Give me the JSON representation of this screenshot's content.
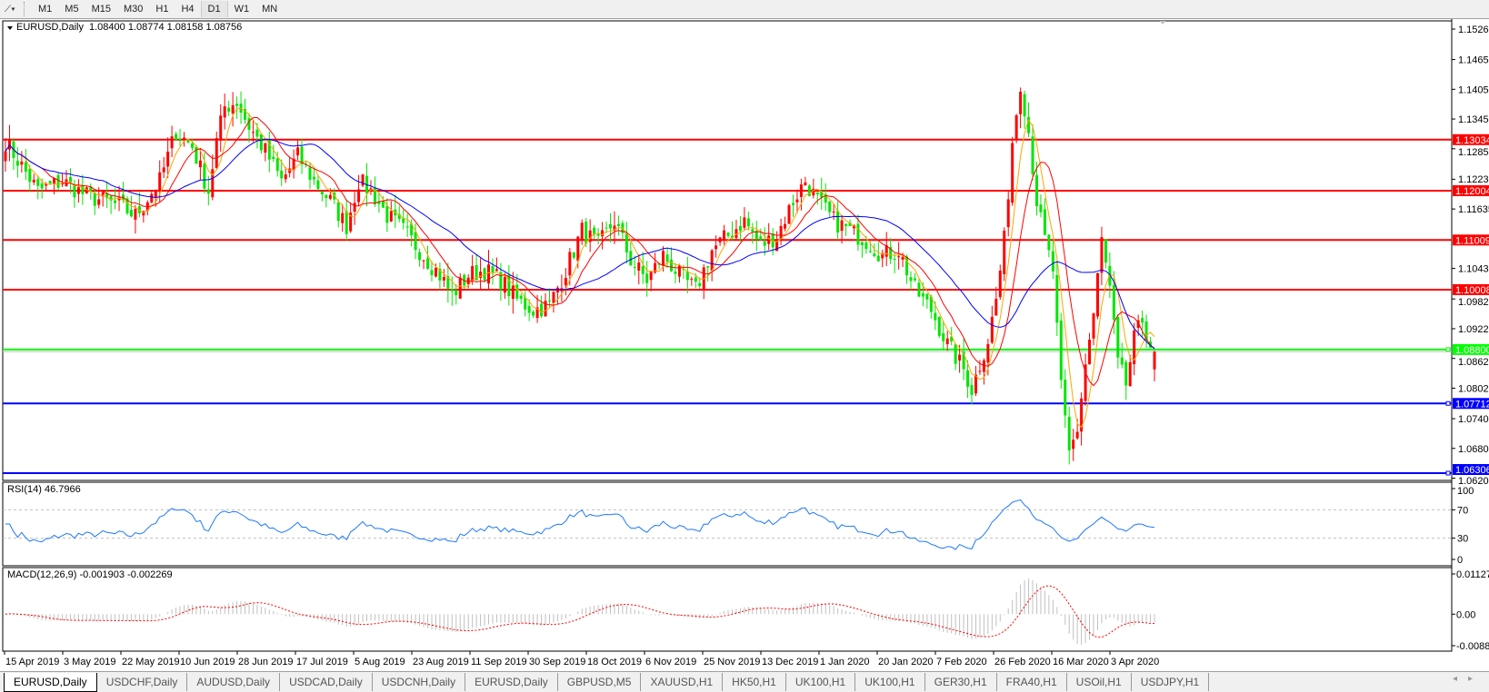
{
  "toolbar": {
    "tool_icon": "line-tools-icon",
    "timeframes": [
      "M1",
      "M5",
      "M15",
      "M30",
      "H1",
      "H4",
      "D1",
      "W1",
      "MN"
    ],
    "active_timeframe": "D1"
  },
  "main": {
    "header": "EURUSD,Daily",
    "ohlc": "1.08400 1.08774 1.08158 1.08756",
    "price_ticks": [
      "1.15265",
      "1.14650",
      "1.14050",
      "1.13450",
      "1.12850",
      "1.12235",
      "1.11635",
      "1.10435",
      "1.09820",
      "1.09220",
      "1.08620",
      "1.08020",
      "1.07405",
      "1.06805",
      "1.06205"
    ],
    "levels": [
      {
        "price": "1.13034",
        "color": "#ff0000"
      },
      {
        "price": "1.12004",
        "color": "#ff0000"
      },
      {
        "price": "1.11009",
        "color": "#ff0000"
      },
      {
        "price": "1.10008",
        "color": "#ff0000"
      },
      {
        "price": "1.08800",
        "color": "#00ff00"
      },
      {
        "price": "1.07712",
        "color": "#0000ff"
      },
      {
        "price": "1.06306",
        "color": "#0000ff"
      }
    ],
    "up_color": "#ff0000",
    "down_color": "#00e600",
    "ma_colors": [
      "#ffa500",
      "#ff0000",
      "#0000ff"
    ]
  },
  "rsi": {
    "label": "RSI(14) 46.7966",
    "ticks": [
      "100",
      "70",
      "30",
      "0"
    ],
    "color": "#1e78ff"
  },
  "macd": {
    "label": "MACD(12,26,9) -0.001903 -0.002269",
    "ticks": [
      "0.011277",
      "0.00",
      "-0.008845"
    ],
    "signal_color": "#ff0000",
    "hist_color": "#c0c0c0"
  },
  "time_axis": [
    "15 Apr 2019",
    "3 May 2019",
    "22 May 2019",
    "10 Jun 2019",
    "28 Jun 2019",
    "17 Jul 2019",
    "5 Aug 2019",
    "23 Aug 2019",
    "11 Sep 2019",
    "30 Sep 2019",
    "18 Oct 2019",
    "6 Nov 2019",
    "25 Nov 2019",
    "13 Dec 2019",
    "1 Jan 2020",
    "20 Jan 2020",
    "7 Feb 2020",
    "26 Feb 2020",
    "16 Mar 2020",
    "3 Apr 2020"
  ],
  "chart_data": {
    "type": "candlestick",
    "symbol": "EURUSD",
    "timeframe": "Daily",
    "ylim": [
      1.06205,
      1.15265
    ],
    "last_bar": {
      "open": 1.084,
      "high": 1.08774,
      "low": 1.08158,
      "close": 1.08756
    },
    "close_keypoints": [
      [
        0,
        1.13
      ],
      [
        8,
        1.12
      ],
      [
        14,
        1.122
      ],
      [
        20,
        1.119
      ],
      [
        28,
        1.117
      ],
      [
        32,
        1.115
      ],
      [
        38,
        1.122
      ],
      [
        42,
        1.132
      ],
      [
        46,
        1.129
      ],
      [
        50,
        1.12
      ],
      [
        52,
        1.13
      ],
      [
        54,
        1.137
      ],
      [
        57,
        1.138
      ],
      [
        60,
        1.133
      ],
      [
        64,
        1.128
      ],
      [
        68,
        1.122
      ],
      [
        72,
        1.127
      ],
      [
        76,
        1.122
      ],
      [
        80,
        1.118
      ],
      [
        84,
        1.113
      ],
      [
        87,
        1.122
      ],
      [
        90,
        1.12
      ],
      [
        94,
        1.115
      ],
      [
        98,
        1.112
      ],
      [
        104,
        1.106
      ],
      [
        107,
        1.103
      ],
      [
        110,
        1.099
      ],
      [
        114,
        1.103
      ],
      [
        118,
        1.104
      ],
      [
        122,
        1.102
      ],
      [
        126,
        1.098
      ],
      [
        130,
        1.096
      ],
      [
        134,
        1.097
      ],
      [
        138,
        1.104
      ],
      [
        142,
        1.112
      ],
      [
        146,
        1.109
      ],
      [
        150,
        1.114
      ],
      [
        154,
        1.106
      ],
      [
        158,
        1.102
      ],
      [
        162,
        1.107
      ],
      [
        166,
        1.103
      ],
      [
        170,
        1.1
      ],
      [
        174,
        1.108
      ],
      [
        178,
        1.111
      ],
      [
        182,
        1.114
      ],
      [
        186,
        1.109
      ],
      [
        190,
        1.111
      ],
      [
        194,
        1.118
      ],
      [
        197,
        1.122
      ],
      [
        200,
        1.118
      ],
      [
        204,
        1.114
      ],
      [
        208,
        1.112
      ],
      [
        212,
        1.11
      ],
      [
        216,
        1.107
      ],
      [
        220,
        1.108
      ],
      [
        224,
        1.1
      ],
      [
        228,
        1.096
      ],
      [
        232,
        1.089
      ],
      [
        236,
        1.084
      ],
      [
        238,
        1.08
      ],
      [
        240,
        1.085
      ],
      [
        242,
        1.09
      ],
      [
        244,
        1.098
      ],
      [
        246,
        1.11
      ],
      [
        248,
        1.13
      ],
      [
        250,
        1.142
      ],
      [
        252,
        1.132
      ],
      [
        254,
        1.118
      ],
      [
        256,
        1.11
      ],
      [
        258,
        1.104
      ],
      [
        260,
        1.08
      ],
      [
        262,
        1.067
      ],
      [
        264,
        1.072
      ],
      [
        266,
        1.085
      ],
      [
        268,
        1.095
      ],
      [
        270,
        1.11
      ],
      [
        272,
        1.1
      ],
      [
        274,
        1.085
      ],
      [
        276,
        1.081
      ],
      [
        278,
        1.09
      ],
      [
        280,
        1.094
      ],
      [
        282,
        1.089
      ],
      [
        283,
        1.08756
      ]
    ],
    "moving_averages": [
      "fast",
      "medium",
      "slow"
    ],
    "rsi_range": [
      0,
      100
    ],
    "rsi_levels": [
      30,
      70
    ],
    "macd_range": [
      -0.008845,
      0.011277
    ]
  },
  "tabs": [
    "EURUSD,Daily",
    "USDCHF,Daily",
    "AUDUSD,Daily",
    "USDCAD,Daily",
    "USDCNH,Daily",
    "EURUSD,Daily",
    "GBPUSD,M5",
    "XAUUSD,H1",
    "HK50,H1",
    "UK100,H1",
    "UK100,H1",
    "GER30,H1",
    "FRA40,H1",
    "USOil,H1",
    "USDJPY,H1"
  ],
  "active_tab": 0
}
